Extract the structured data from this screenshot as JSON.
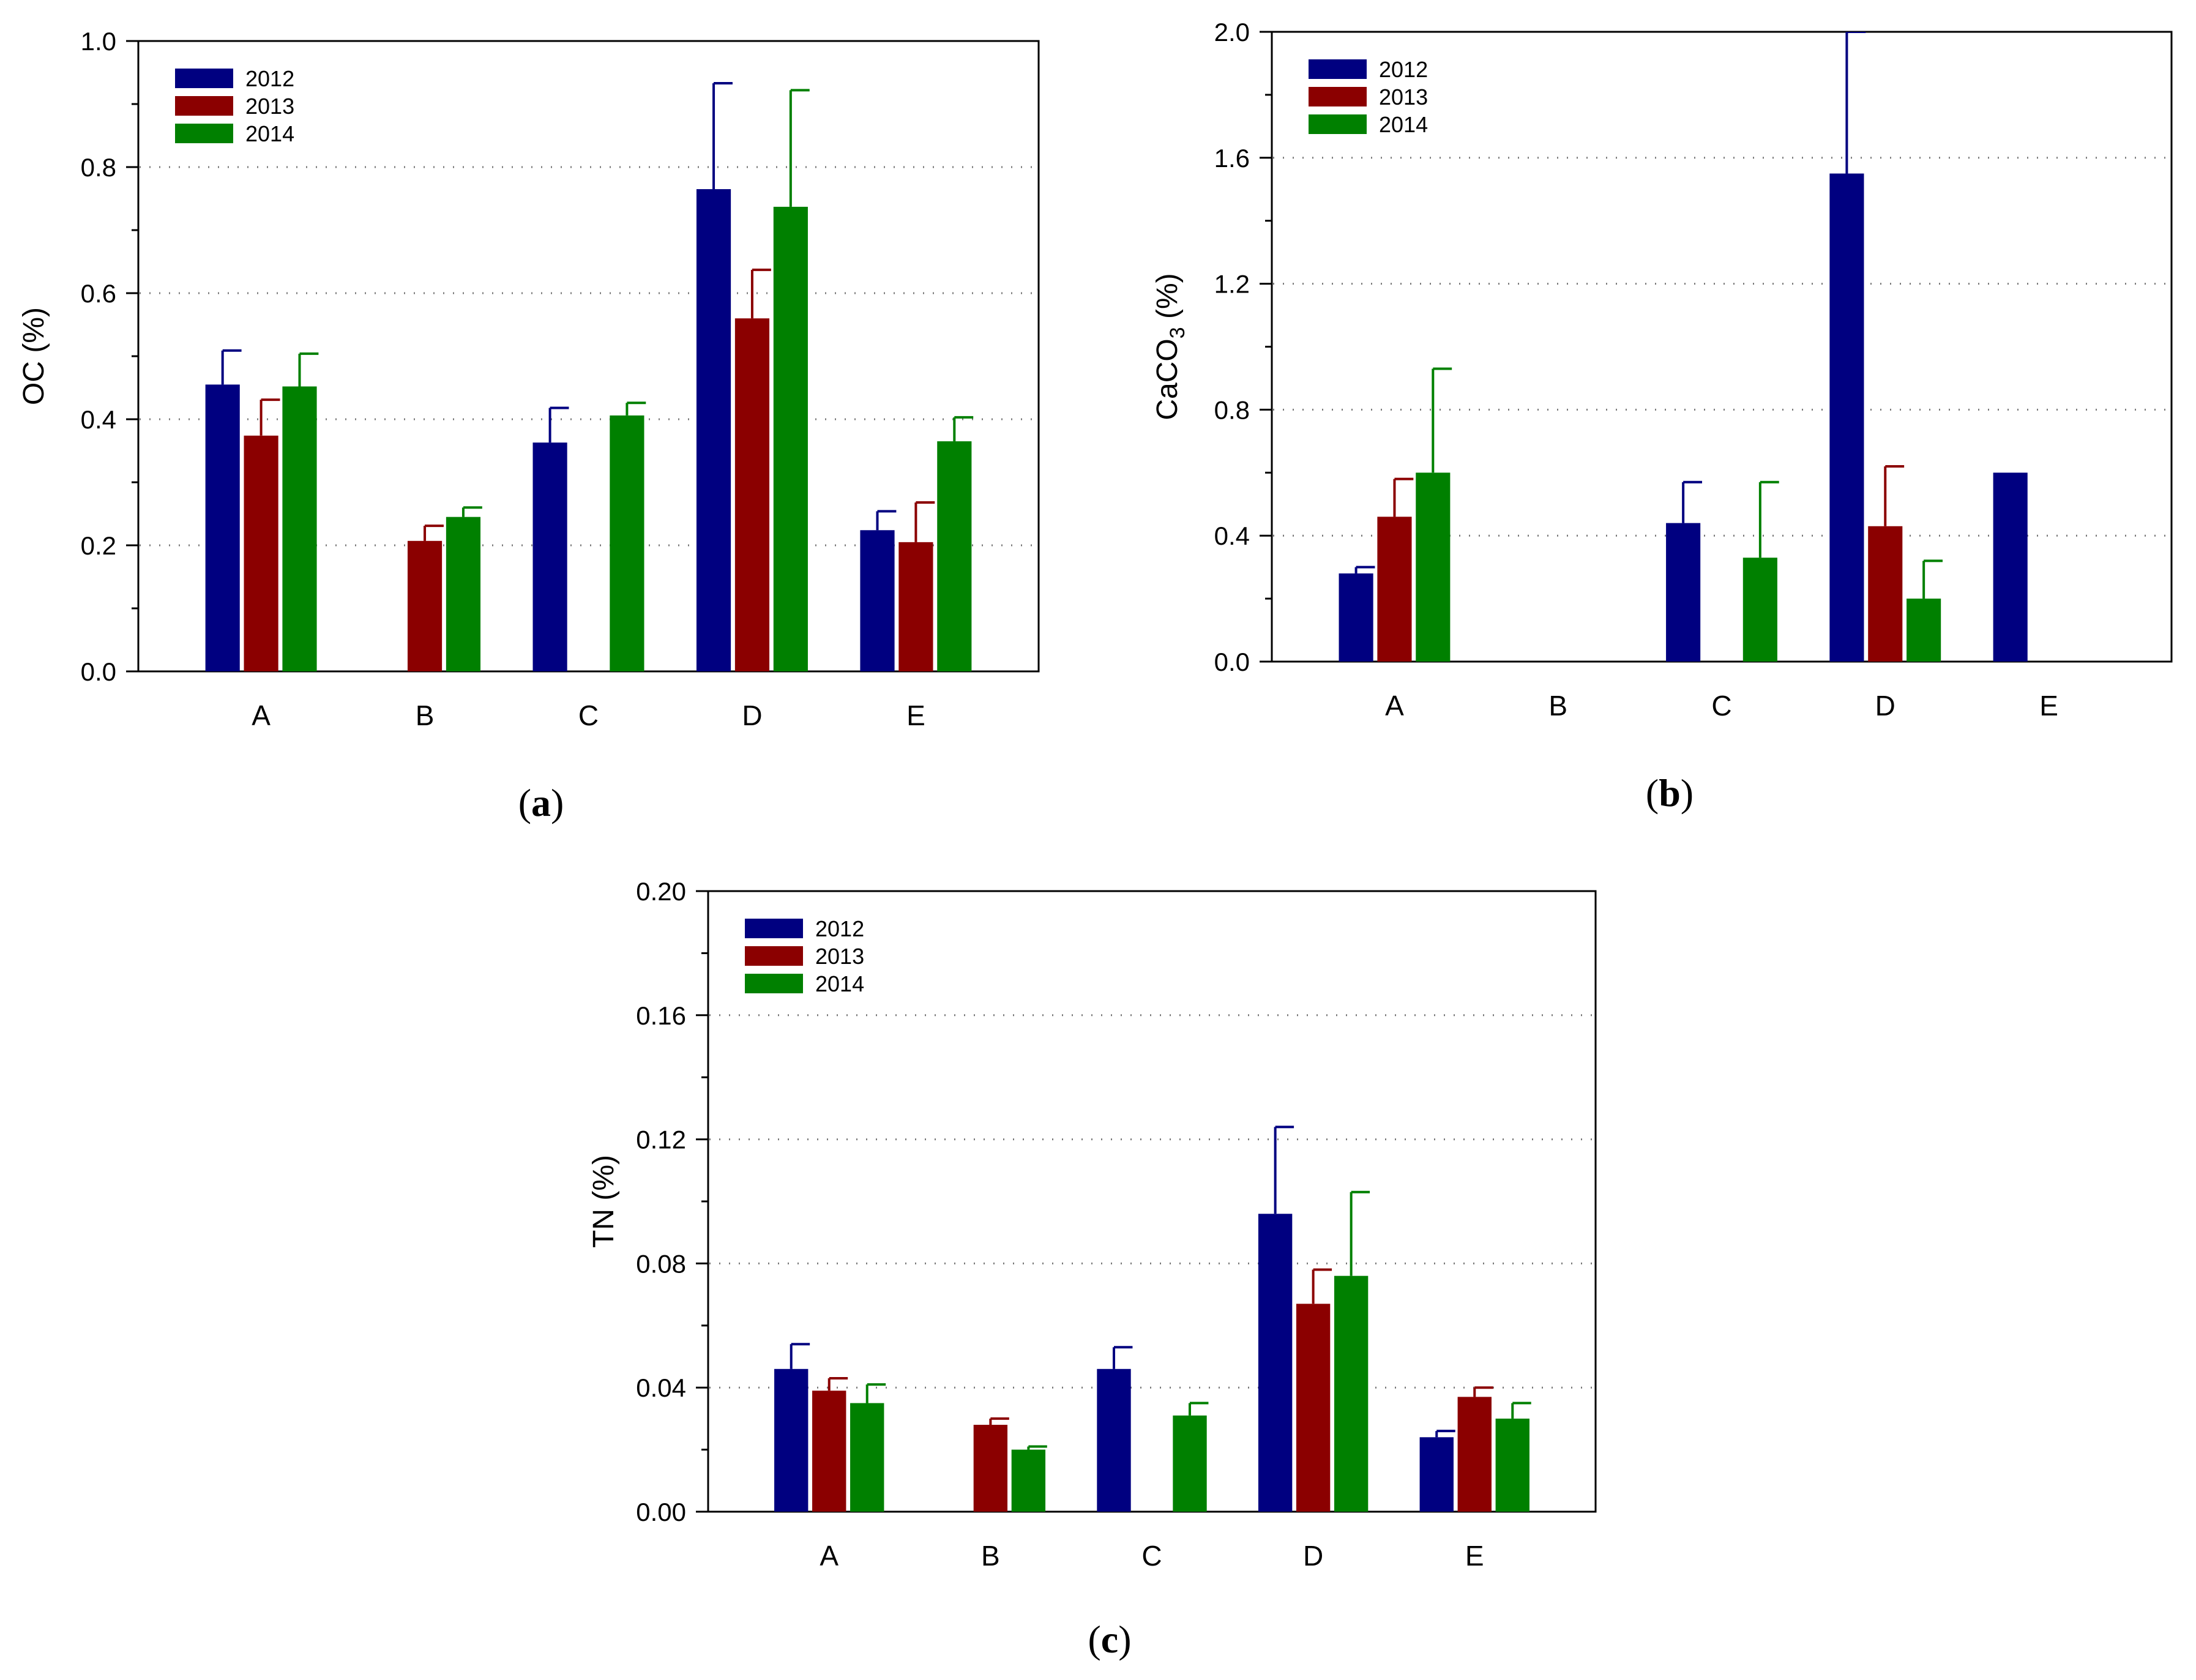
{
  "figure": {
    "colors": {
      "2012": "#000080",
      "2013": "#8b0000",
      "2014": "#008000",
      "grid": "#777777",
      "axis": "#000000"
    },
    "panels_order": [
      "a",
      "b",
      "c"
    ]
  },
  "chart_data": [
    {
      "id": "a",
      "caption_open": "(",
      "caption_letter": "a",
      "caption_close": ")",
      "type": "bar",
      "title": "",
      "xlabel": "",
      "ylabel": "OC (%)",
      "ylabel_main": "OC (%)",
      "ylabel_sub": "",
      "ylabel_rest": "",
      "ylim": [
        0,
        1.0
      ],
      "yticks": [
        0.0,
        0.2,
        0.4,
        0.6,
        0.8,
        1.0
      ],
      "ytick_labels": [
        "0.0",
        "0.2",
        "0.4",
        "0.6",
        "0.8",
        "1.0"
      ],
      "grid_lines": [
        0.2,
        0.4,
        0.6,
        0.8
      ],
      "legend_position": "top-left",
      "categories": [
        "A",
        "B",
        "C",
        "D",
        "E"
      ],
      "series": [
        {
          "name": "2012",
          "values": [
            0.455,
            0,
            0.363,
            0.765,
            0.224
          ],
          "errors": [
            0.054,
            0,
            0.055,
            0.168,
            0.03
          ]
        },
        {
          "name": "2013",
          "values": [
            0.374,
            0.207,
            0,
            0.56,
            0.205
          ],
          "errors": [
            0.057,
            0.024,
            0,
            0.077,
            0.063
          ]
        },
        {
          "name": "2014",
          "values": [
            0.452,
            0.245,
            0.406,
            0.737,
            0.365
          ],
          "errors": [
            0.052,
            0.015,
            0.02,
            0.185,
            0.038
          ]
        }
      ]
    },
    {
      "id": "b",
      "caption_open": "(",
      "caption_letter": "b",
      "caption_close": ")",
      "type": "bar",
      "title": "",
      "xlabel": "",
      "ylabel": "CaCO3 (%)",
      "ylabel_main": "CaCO",
      "ylabel_sub": "3",
      "ylabel_rest": " (%)",
      "ylim": [
        0,
        2.0
      ],
      "yticks": [
        0.0,
        0.4,
        0.8,
        1.2,
        1.6,
        2.0
      ],
      "ytick_labels": [
        "0.0",
        "0.4",
        "0.8",
        "1.2",
        "1.6",
        "2.0"
      ],
      "grid_lines": [
        0.4,
        0.8,
        1.2,
        1.6
      ],
      "legend_position": "top-left",
      "categories": [
        "A",
        "B",
        "C",
        "D",
        "E"
      ],
      "series": [
        {
          "name": "2012",
          "values": [
            0.28,
            0,
            0.44,
            1.55,
            0.6
          ],
          "errors": [
            0.02,
            0,
            0.13,
            0.45,
            0
          ]
        },
        {
          "name": "2013",
          "values": [
            0.46,
            0,
            0,
            0.43,
            0
          ],
          "errors": [
            0.12,
            0,
            0,
            0.19,
            0
          ]
        },
        {
          "name": "2014",
          "values": [
            0.6,
            0,
            0.33,
            0.2,
            0
          ],
          "errors": [
            0.33,
            0,
            0.24,
            0.12,
            0
          ]
        }
      ]
    },
    {
      "id": "c",
      "caption_open": "(",
      "caption_letter": "c",
      "caption_close": ")",
      "type": "bar",
      "title": "",
      "xlabel": "",
      "ylabel": "TN (%)",
      "ylabel_main": "TN (%)",
      "ylabel_sub": "",
      "ylabel_rest": "",
      "ylim": [
        0,
        0.2
      ],
      "yticks": [
        0.0,
        0.04,
        0.08,
        0.12,
        0.16,
        0.2
      ],
      "ytick_labels": [
        "0.00",
        "0.04",
        "0.08",
        "0.12",
        "0.16",
        "0.20"
      ],
      "grid_lines": [
        0.04,
        0.08,
        0.12,
        0.16
      ],
      "legend_position": "top-left",
      "categories": [
        "A",
        "B",
        "C",
        "D",
        "E"
      ],
      "series": [
        {
          "name": "2012",
          "values": [
            0.046,
            0,
            0.046,
            0.096,
            0.024
          ],
          "errors": [
            0.008,
            0,
            0.007,
            0.028,
            0.002
          ]
        },
        {
          "name": "2013",
          "values": [
            0.039,
            0.028,
            0,
            0.067,
            0.037
          ],
          "errors": [
            0.004,
            0.002,
            0,
            0.011,
            0.003
          ]
        },
        {
          "name": "2014",
          "values": [
            0.035,
            0.02,
            0.031,
            0.076,
            0.03
          ],
          "errors": [
            0.006,
            0.001,
            0.004,
            0.027,
            0.005
          ]
        }
      ]
    }
  ]
}
